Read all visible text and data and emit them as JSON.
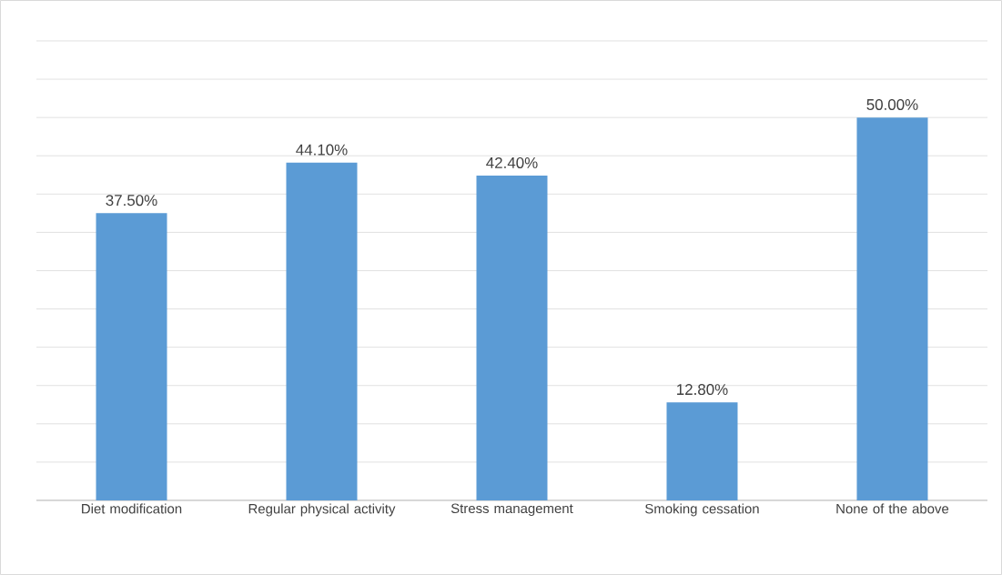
{
  "chart_data": {
    "type": "bar",
    "categories": [
      "Diet modification",
      "Regular physical activity",
      "Stress management",
      "Smoking cessation",
      "None of the above"
    ],
    "values": [
      37.5,
      44.1,
      42.4,
      12.8,
      50.0
    ],
    "value_labels": [
      "37.50%",
      "44.10%",
      "42.40%",
      "12.80%",
      "50.00%"
    ],
    "color": "#5b9bd5",
    "grid": "y",
    "tick_labels": "x",
    "legend": false
  }
}
